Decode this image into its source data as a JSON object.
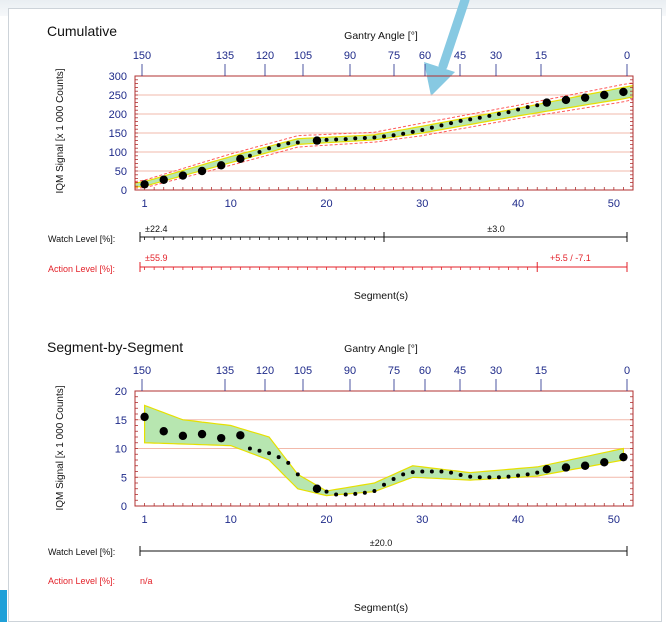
{
  "chart_data": [
    {
      "type": "scatter",
      "title": "Cumulative",
      "top_axis_label": "Gantry Angle [°]",
      "top_ticks": [
        "150",
        "135",
        "120",
        "105",
        "90",
        "75",
        "60",
        "45",
        "30",
        "15",
        "0"
      ],
      "xlabel": "Segment(s)",
      "ylabel": "IQM Signal [x 1 000 Counts]",
      "xlim": [
        0,
        52
      ],
      "ylim": [
        0,
        300
      ],
      "x_ticks": [
        1,
        10,
        20,
        30,
        40,
        50
      ],
      "y_ticks": [
        0,
        50,
        100,
        150,
        200,
        250,
        300
      ],
      "grid": "horizontal",
      "series": [
        {
          "points": [
            [
              1,
              15
            ],
            [
              3,
              27
            ],
            [
              5,
              38
            ],
            [
              7,
              50
            ],
            [
              9,
              65
            ],
            [
              11,
              82
            ],
            [
              12,
              90
            ],
            [
              13,
              100
            ],
            [
              14,
              110
            ],
            [
              15,
              118
            ],
            [
              16,
              123
            ],
            [
              17,
              125
            ],
            [
              19,
              130
            ],
            [
              20,
              132
            ],
            [
              21,
              133
            ],
            [
              22,
              134
            ],
            [
              23,
              136
            ],
            [
              24,
              137
            ],
            [
              25,
              138
            ],
            [
              26,
              141
            ],
            [
              27,
              144
            ],
            [
              28,
              148
            ],
            [
              29,
              153
            ],
            [
              30,
              158
            ],
            [
              31,
              164
            ],
            [
              32,
              170
            ],
            [
              33,
              176
            ],
            [
              34,
              182
            ],
            [
              35,
              186
            ],
            [
              36,
              190
            ],
            [
              37,
              195
            ],
            [
              38,
              200
            ],
            [
              39,
              205
            ],
            [
              40,
              212
            ],
            [
              41,
              218
            ],
            [
              42,
              223
            ],
            [
              43,
              230
            ],
            [
              45,
              237
            ],
            [
              47,
              243
            ],
            [
              49,
              250
            ],
            [
              51,
              258
            ]
          ],
          "large_points": [
            1,
            3,
            5,
            7,
            9,
            11,
            19,
            43,
            45,
            47,
            49,
            51
          ]
        }
      ],
      "band": {
        "lower": [
          [
            0,
            8
          ],
          [
            1,
            10
          ],
          [
            10,
            72
          ],
          [
            17,
            120
          ],
          [
            25,
            132
          ],
          [
            30,
            150
          ],
          [
            40,
            195
          ],
          [
            51,
            240
          ],
          [
            52,
            245
          ]
        ],
        "upper": [
          [
            0,
            18
          ],
          [
            1,
            22
          ],
          [
            10,
            88
          ],
          [
            17,
            135
          ],
          [
            25,
            145
          ],
          [
            30,
            168
          ],
          [
            40,
            215
          ],
          [
            51,
            270
          ],
          [
            52,
            275
          ]
        ]
      },
      "limits": {
        "lower": [
          [
            0,
            5
          ],
          [
            1,
            6
          ],
          [
            10,
            65
          ],
          [
            17,
            113
          ],
          [
            25,
            126
          ],
          [
            30,
            143
          ],
          [
            40,
            188
          ],
          [
            51,
            232
          ],
          [
            52,
            238
          ]
        ],
        "upper": [
          [
            0,
            22
          ],
          [
            1,
            26
          ],
          [
            10,
            95
          ],
          [
            17,
            143
          ],
          [
            25,
            152
          ],
          [
            30,
            176
          ],
          [
            40,
            223
          ],
          [
            51,
            278
          ],
          [
            52,
            282
          ]
        ]
      },
      "levels": {
        "watch": {
          "label": "Watch Level [%]:",
          "values": [
            "±22.4",
            "±3.0"
          ],
          "split_segment": 26
        },
        "action": {
          "label": "Action Level [%]:",
          "values": [
            "±55.9",
            "+5.5 / -7.1"
          ],
          "split_segment": 42
        }
      }
    },
    {
      "type": "scatter",
      "title": "Segment-by-Segment",
      "top_axis_label": "Gantry Angle [°]",
      "top_ticks": [
        "150",
        "135",
        "120",
        "105",
        "90",
        "75",
        "60",
        "45",
        "30",
        "15",
        "0"
      ],
      "xlabel": "Segment(s)",
      "ylabel": "IQM Signal [x 1 000 Counts]",
      "xlim": [
        0,
        52
      ],
      "ylim": [
        0,
        20
      ],
      "x_ticks": [
        1,
        10,
        20,
        30,
        40,
        50
      ],
      "y_ticks": [
        0,
        5,
        10,
        15,
        20
      ],
      "grid": "horizontal",
      "series": [
        {
          "points": [
            [
              1,
              15.5
            ],
            [
              3,
              13
            ],
            [
              5,
              12.2
            ],
            [
              7,
              12.5
            ],
            [
              9,
              11.8
            ],
            [
              11,
              12.3
            ],
            [
              12,
              10
            ],
            [
              13,
              9.6
            ],
            [
              14,
              9.2
            ],
            [
              15,
              8.5
            ],
            [
              16,
              7.5
            ],
            [
              17,
              5.5
            ],
            [
              19,
              3
            ],
            [
              20,
              2.5
            ],
            [
              21,
              2
            ],
            [
              22,
              2
            ],
            [
              23,
              2.1
            ],
            [
              24,
              2.3
            ],
            [
              25,
              2.6
            ],
            [
              26,
              3.7
            ],
            [
              27,
              4.7
            ],
            [
              28,
              5.5
            ],
            [
              29,
              5.9
            ],
            [
              30,
              6
            ],
            [
              31,
              6
            ],
            [
              32,
              6
            ],
            [
              33,
              5.8
            ],
            [
              34,
              5.4
            ],
            [
              35,
              5.1
            ],
            [
              36,
              5
            ],
            [
              37,
              5
            ],
            [
              38,
              5
            ],
            [
              39,
              5.1
            ],
            [
              40,
              5.3
            ],
            [
              41,
              5.5
            ],
            [
              42,
              5.8
            ],
            [
              43,
              6.4
            ],
            [
              45,
              6.7
            ],
            [
              47,
              7
            ],
            [
              49,
              7.6
            ],
            [
              51,
              8.5
            ]
          ],
          "large_points": [
            1,
            3,
            5,
            7,
            9,
            11,
            19,
            43,
            45,
            47,
            49,
            51
          ]
        }
      ],
      "band": {
        "lower": [
          [
            1,
            11
          ],
          [
            10,
            10.5
          ],
          [
            14,
            8
          ],
          [
            17,
            3
          ],
          [
            20,
            1.8
          ],
          [
            25,
            2.5
          ],
          [
            29,
            5
          ],
          [
            35,
            4.5
          ],
          [
            42,
            5.2
          ],
          [
            51,
            8
          ]
        ],
        "upper": [
          [
            1,
            17.5
          ],
          [
            5,
            15
          ],
          [
            10,
            14
          ],
          [
            14,
            12
          ],
          [
            17,
            5.5
          ],
          [
            20,
            2.6
          ],
          [
            25,
            4
          ],
          [
            29,
            7
          ],
          [
            35,
            5.8
          ],
          [
            42,
            6.8
          ],
          [
            51,
            10
          ]
        ]
      },
      "levels": {
        "watch": {
          "label": "Watch Level [%]:",
          "values": [
            "±20.0"
          ]
        },
        "action": {
          "label": "Action Level [%]:",
          "values": [
            "n/a"
          ]
        }
      }
    }
  ],
  "colors": {
    "band": "#b7e6b0",
    "band_edge": "#e6e000",
    "limit": "#ff5a5a",
    "grid": "#f2b9ab",
    "tick_text": "#1f2b8a",
    "action": "#e3222a",
    "arrow": "#87c9e2"
  }
}
